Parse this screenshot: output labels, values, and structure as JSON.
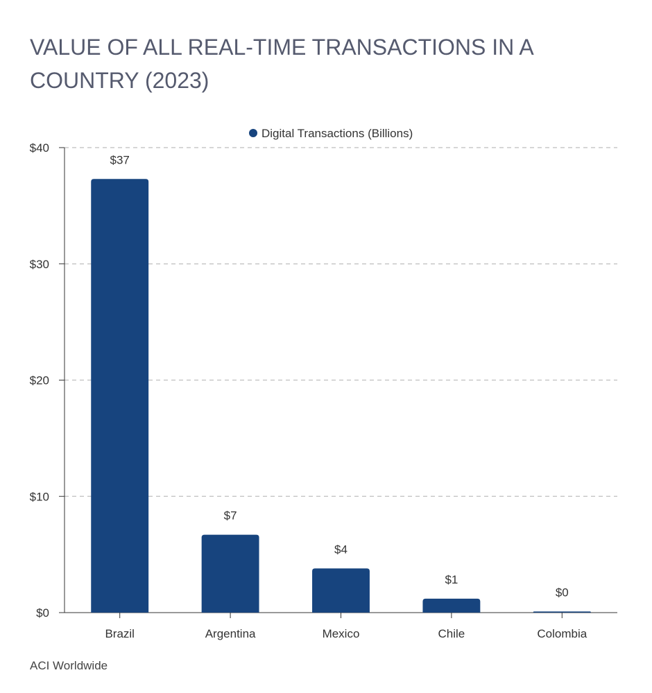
{
  "page": {
    "title": "VALUE OF ALL REAL-TIME TRANSACTIONS IN A COUNTRY (2023)",
    "source": "ACI Worldwide"
  },
  "chart_data": {
    "type": "bar",
    "categories": [
      "Brazil",
      "Argentina",
      "Mexico",
      "Chile",
      "Colombia"
    ],
    "series": [
      {
        "name": "Digital Transactions (Billions)",
        "values": [
          37.3,
          6.7,
          3.8,
          1.2,
          0.1
        ],
        "data_labels": [
          "$37",
          "$7",
          "$4",
          "$1",
          "$0"
        ],
        "color": "#17447e"
      }
    ],
    "y_ticks": [
      0,
      10,
      20,
      30,
      40
    ],
    "y_tick_labels": [
      "$0",
      "$10",
      "$20",
      "$30",
      "$40"
    ],
    "ylim": [
      0,
      40
    ],
    "grid": true,
    "legend_position": "top-center",
    "xlabel": "",
    "ylabel": ""
  }
}
